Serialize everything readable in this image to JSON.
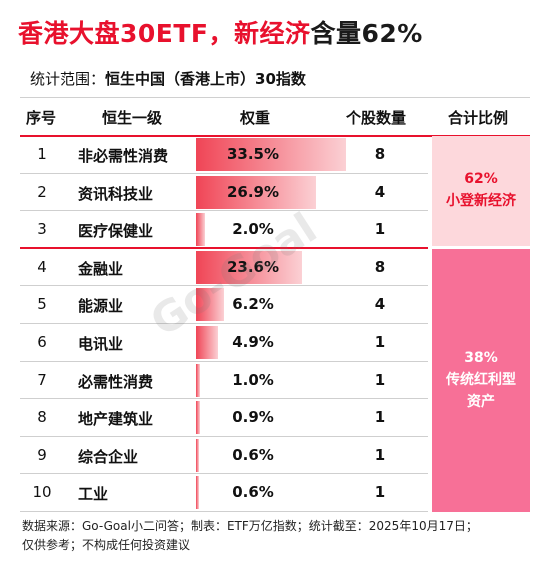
{
  "title": {
    "main": "香港大盘30ETF，新经济",
    "tail": "含量62%"
  },
  "scope": {
    "label": "统计范围：",
    "value": "恒生中国（香港上市）30指数"
  },
  "table": {
    "headers": [
      "序号",
      "恒生一级",
      "权重",
      "个股数量",
      "合计比例"
    ],
    "rows": [
      {
        "idx": "1",
        "name": "非必需性消费",
        "weight": "33.5%",
        "weight_value": 33.5,
        "count": "8"
      },
      {
        "idx": "2",
        "name": "资讯科技业",
        "weight": "26.9%",
        "weight_value": 26.9,
        "count": "4"
      },
      {
        "idx": "3",
        "name": "医疗保健业",
        "weight": "2.0%",
        "weight_value": 2.0,
        "count": "1"
      },
      {
        "idx": "4",
        "name": "金融业",
        "weight": "23.6%",
        "weight_value": 23.6,
        "count": "8"
      },
      {
        "idx": "5",
        "name": "能源业",
        "weight": "6.2%",
        "weight_value": 6.2,
        "count": "4"
      },
      {
        "idx": "6",
        "name": "电讯业",
        "weight": "4.9%",
        "weight_value": 4.9,
        "count": "1"
      },
      {
        "idx": "7",
        "name": "必需性消费",
        "weight": "1.0%",
        "weight_value": 1.0,
        "count": "1"
      },
      {
        "idx": "8",
        "name": "地产建筑业",
        "weight": "0.9%",
        "weight_value": 0.9,
        "count": "1"
      },
      {
        "idx": "9",
        "name": "综合企业",
        "weight": "0.6%",
        "weight_value": 0.6,
        "count": "1"
      },
      {
        "idx": "10",
        "name": "工业",
        "weight": "0.6%",
        "weight_value": 0.6,
        "count": "1"
      }
    ],
    "groups": [
      {
        "pct": "62%",
        "label": "小登新经济"
      },
      {
        "pct": "38%",
        "label_line1": "传统红利型",
        "label_line2": "资产"
      }
    ]
  },
  "watermark": "Go-Goal",
  "footer": {
    "line1": "数据来源：Go-Goal小二问答；制表：ETF万亿指数；统计截至：2025年10月17日；",
    "line2": "仅供参考；不构成任何投资建议"
  },
  "colors": {
    "accent": "#e8112d",
    "group1_bg": "#fdd8dc",
    "group2_bg": "#f77097"
  }
}
